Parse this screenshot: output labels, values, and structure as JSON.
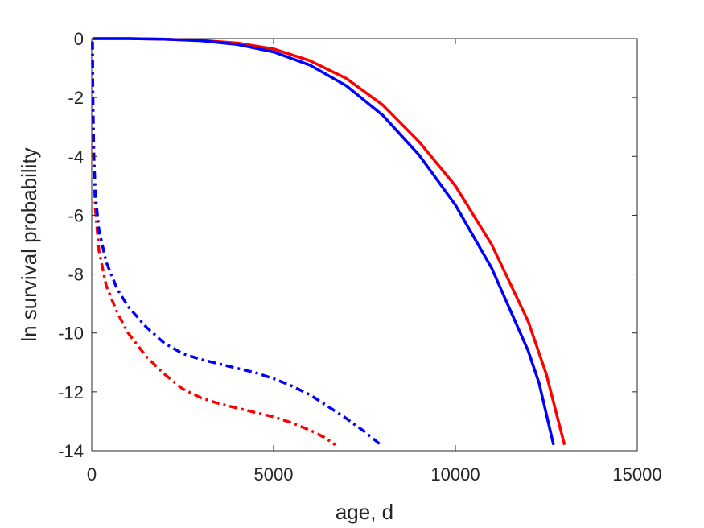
{
  "chart_data": {
    "type": "line",
    "xlabel": "age, d",
    "ylabel": "ln survival probability",
    "xlim": [
      0,
      15000
    ],
    "ylim": [
      -14,
      0
    ],
    "x_ticks": [
      0,
      5000,
      10000,
      15000
    ],
    "y_ticks": [
      0,
      -2,
      -4,
      -6,
      -8,
      -10,
      -12,
      -14
    ],
    "grid": false,
    "series": [
      {
        "color": "#ff0000",
        "style": "solid",
        "points": [
          [
            20,
            0
          ],
          [
            1000,
            0
          ],
          [
            2000,
            -0.02
          ],
          [
            3000,
            -0.06
          ],
          [
            4000,
            -0.15
          ],
          [
            5000,
            -0.35
          ],
          [
            6000,
            -0.75
          ],
          [
            7000,
            -1.35
          ],
          [
            8000,
            -2.25
          ],
          [
            9000,
            -3.5
          ],
          [
            10000,
            -5.0
          ],
          [
            11000,
            -7.0
          ],
          [
            12000,
            -9.6
          ],
          [
            12500,
            -11.4
          ],
          [
            13000,
            -13.8
          ]
        ]
      },
      {
        "color": "#0000ff",
        "style": "solid",
        "points": [
          [
            20,
            0
          ],
          [
            1000,
            0
          ],
          [
            2000,
            -0.02
          ],
          [
            3000,
            -0.07
          ],
          [
            4000,
            -0.2
          ],
          [
            5000,
            -0.45
          ],
          [
            6000,
            -0.9
          ],
          [
            7000,
            -1.6
          ],
          [
            8000,
            -2.6
          ],
          [
            9000,
            -3.95
          ],
          [
            10000,
            -5.65
          ],
          [
            11000,
            -7.8
          ],
          [
            12000,
            -10.6
          ],
          [
            12300,
            -11.7
          ],
          [
            12700,
            -13.8
          ]
        ]
      },
      {
        "color": "#ff0000",
        "style": "dashdot",
        "points": [
          [
            20,
            -0.1
          ],
          [
            30,
            -2.0
          ],
          [
            60,
            -4.5
          ],
          [
            100,
            -5.8
          ],
          [
            200,
            -7.2
          ],
          [
            400,
            -8.4
          ],
          [
            700,
            -9.3
          ],
          [
            1000,
            -10.0
          ],
          [
            1500,
            -10.8
          ],
          [
            2000,
            -11.4
          ],
          [
            2500,
            -11.9
          ],
          [
            3000,
            -12.2
          ],
          [
            3500,
            -12.4
          ],
          [
            4000,
            -12.55
          ],
          [
            4500,
            -12.7
          ],
          [
            5000,
            -12.85
          ],
          [
            5500,
            -13.05
          ],
          [
            6000,
            -13.3
          ],
          [
            6400,
            -13.55
          ],
          [
            6700,
            -13.8
          ]
        ]
      },
      {
        "color": "#0000ff",
        "style": "dashdot",
        "points": [
          [
            20,
            -0.1
          ],
          [
            30,
            -2.0
          ],
          [
            60,
            -4.0
          ],
          [
            100,
            -5.3
          ],
          [
            200,
            -6.5
          ],
          [
            400,
            -7.6
          ],
          [
            700,
            -8.5
          ],
          [
            1000,
            -9.1
          ],
          [
            1500,
            -9.8
          ],
          [
            2000,
            -10.35
          ],
          [
            2500,
            -10.7
          ],
          [
            3000,
            -10.9
          ],
          [
            3500,
            -11.05
          ],
          [
            4000,
            -11.2
          ],
          [
            4500,
            -11.35
          ],
          [
            5000,
            -11.55
          ],
          [
            5500,
            -11.8
          ],
          [
            6000,
            -12.1
          ],
          [
            6500,
            -12.5
          ],
          [
            7000,
            -12.9
          ],
          [
            7500,
            -13.35
          ],
          [
            7950,
            -13.8
          ]
        ]
      }
    ]
  }
}
